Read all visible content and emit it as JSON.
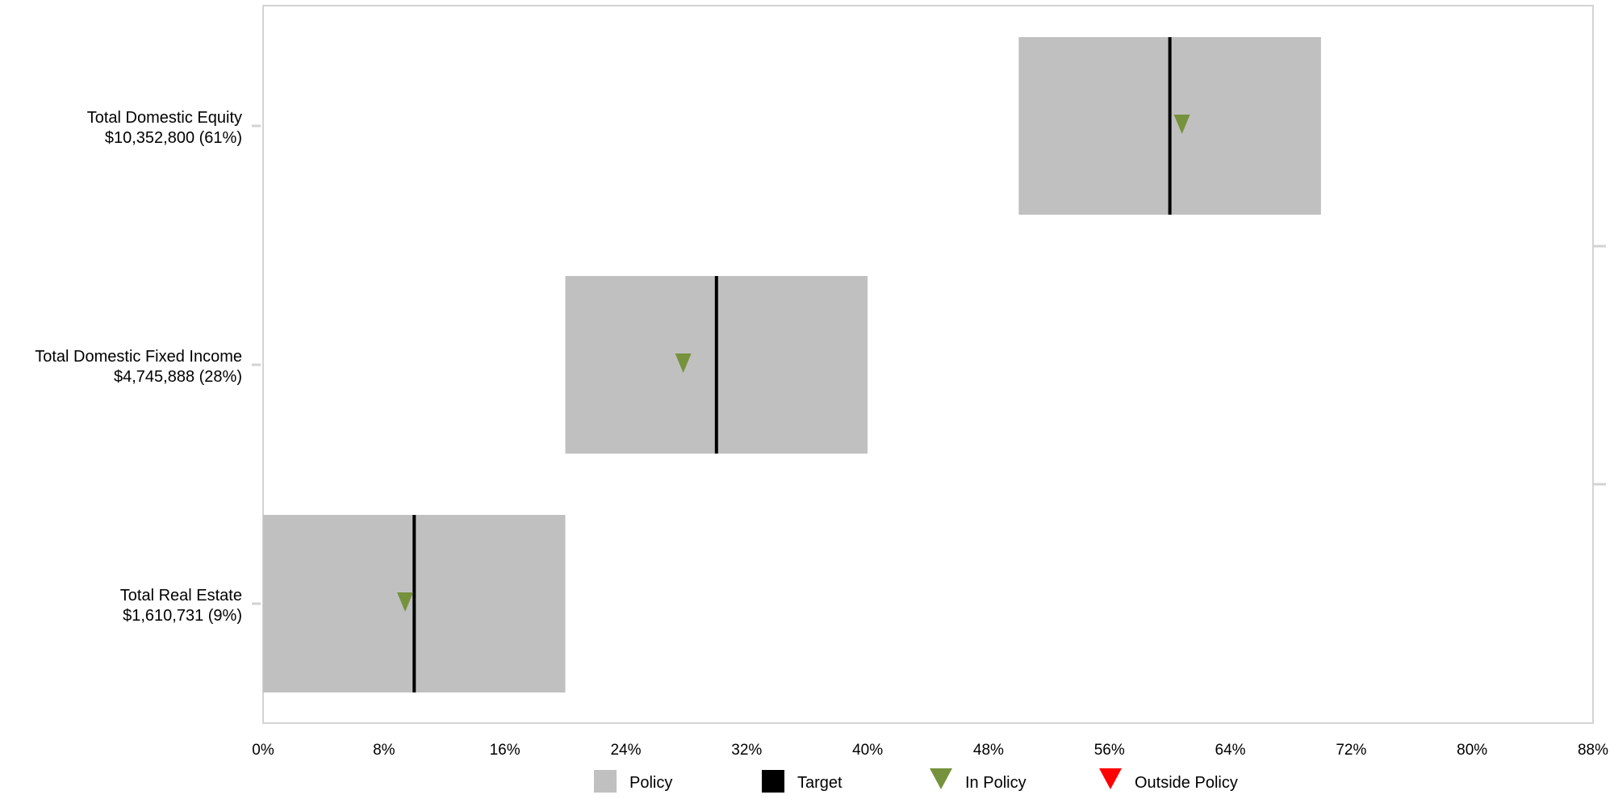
{
  "chart_data": {
    "type": "bar",
    "orientation": "horizontal",
    "title": "",
    "xlabel": "",
    "ylabel": "",
    "xlim": [
      0,
      88
    ],
    "x_ticks": [
      "0%",
      "8%",
      "16%",
      "24%",
      "32%",
      "40%",
      "48%",
      "56%",
      "64%",
      "72%",
      "80%",
      "88%"
    ],
    "x_tick_values": [
      0,
      8,
      16,
      24,
      32,
      40,
      48,
      56,
      64,
      72,
      80,
      88
    ],
    "grid": false,
    "legend_position": "bottom",
    "categories": [
      {
        "name": "Total Domestic Equity",
        "value_label": "$10,352,800 (61%)",
        "policy_min": 50,
        "policy_max": 70,
        "target": 60,
        "actual": 60.8,
        "status": "In Policy"
      },
      {
        "name": "Total Domestic Fixed Income",
        "value_label": "$4,745,888 (28%)",
        "policy_min": 20,
        "policy_max": 40,
        "target": 30,
        "actual": 27.8,
        "status": "In Policy"
      },
      {
        "name": "Total Real Estate",
        "value_label": "$1,610,731 (9%)",
        "policy_min": 0,
        "policy_max": 20,
        "target": 10,
        "actual": 9.4,
        "status": "In Policy"
      }
    ],
    "legend": [
      {
        "label": "Policy",
        "color": "#c0c0c0",
        "shape": "square"
      },
      {
        "label": "Target",
        "color": "#000000",
        "shape": "square"
      },
      {
        "label": "In Policy",
        "color": "#76923c",
        "shape": "triangle-down"
      },
      {
        "label": "Outside Policy",
        "color": "#ff0000",
        "shape": "triangle-down"
      }
    ],
    "colors": {
      "policy": "#c0c0c0",
      "target": "#000000",
      "in_policy": "#76923c",
      "outside_policy": "#ff0000",
      "frame": "#d3d3d3"
    }
  }
}
